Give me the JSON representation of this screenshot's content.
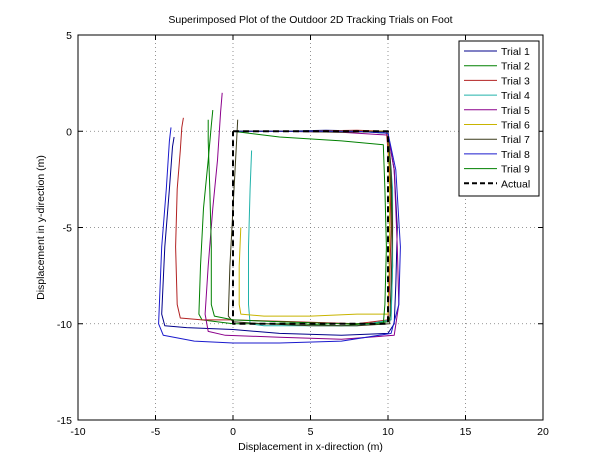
{
  "chart_data": {
    "type": "line",
    "title": "Superimposed Plot of the Outdoor 2D Tracking Trials on Foot",
    "xlabel": "Displacement in x-direction (m)",
    "ylabel": "Displacement in y-direction (m)",
    "xlim": [
      -10,
      20
    ],
    "ylim": [
      -15,
      5
    ],
    "xticks": [
      -10,
      -5,
      0,
      5,
      10,
      15,
      20
    ],
    "yticks": [
      -15,
      -10,
      -5,
      0,
      5
    ],
    "grid": true,
    "legend_position": "top-right",
    "series": [
      {
        "name": "Trial 1",
        "color": "#00008b",
        "dash": "solid",
        "points": [
          [
            0,
            0
          ],
          [
            3,
            0
          ],
          [
            6,
            0.05
          ],
          [
            9,
            0
          ],
          [
            10,
            -0.1
          ],
          [
            10.4,
            -2
          ],
          [
            10.6,
            -5
          ],
          [
            10.5,
            -8
          ],
          [
            10.4,
            -10
          ],
          [
            10,
            -10.5
          ],
          [
            7,
            -10.6
          ],
          [
            3,
            -10.5
          ],
          [
            0,
            -10.3
          ],
          [
            -3,
            -10.2
          ],
          [
            -4.4,
            -10.1
          ],
          [
            -4.6,
            -9.5
          ],
          [
            -4.4,
            -6
          ],
          [
            -4.1,
            -3
          ],
          [
            -3.9,
            -0.8
          ],
          [
            -3.8,
            -0.3
          ]
        ]
      },
      {
        "name": "Trial 2",
        "color": "#008000",
        "dash": "solid",
        "points": [
          [
            0,
            0
          ],
          [
            4,
            0
          ],
          [
            8,
            0
          ],
          [
            10,
            -0.1
          ],
          [
            10.2,
            -3
          ],
          [
            10.3,
            -7
          ],
          [
            10.2,
            -9.5
          ],
          [
            10,
            -9.9
          ],
          [
            7,
            -10.1
          ],
          [
            4,
            -10
          ],
          [
            0,
            -10
          ],
          [
            -2,
            -9.8
          ],
          [
            -2.2,
            -9.5
          ],
          [
            -2.1,
            -7
          ],
          [
            -1.9,
            -4
          ],
          [
            -1.6,
            -1.5
          ],
          [
            -1.4,
            0.3
          ],
          [
            -1.3,
            1.1
          ]
        ]
      },
      {
        "name": "Trial 3",
        "color": "#b22222",
        "dash": "solid",
        "points": [
          [
            0,
            0
          ],
          [
            4,
            0
          ],
          [
            8,
            0.05
          ],
          [
            9.9,
            0
          ],
          [
            10.1,
            -2
          ],
          [
            10.2,
            -5
          ],
          [
            10.1,
            -8
          ],
          [
            10,
            -9.8
          ],
          [
            8,
            -10
          ],
          [
            4,
            -9.9
          ],
          [
            0,
            -9.8
          ],
          [
            -2,
            -9.8
          ],
          [
            -3.4,
            -9.7
          ],
          [
            -3.6,
            -9
          ],
          [
            -3.7,
            -6
          ],
          [
            -3.6,
            -3
          ],
          [
            -3.4,
            -1
          ],
          [
            -3.3,
            0.2
          ],
          [
            -3.2,
            0.7
          ]
        ]
      },
      {
        "name": "Trial 4",
        "color": "#20b2aa",
        "dash": "solid",
        "points": [
          [
            0,
            0
          ],
          [
            4,
            0
          ],
          [
            8,
            0
          ],
          [
            10,
            -0.1
          ],
          [
            10.3,
            -3
          ],
          [
            10.3,
            -7
          ],
          [
            10.2,
            -9.8
          ],
          [
            8,
            -10.1
          ],
          [
            5,
            -10.1
          ],
          [
            2,
            -10.1
          ],
          [
            1.1,
            -10
          ],
          [
            1.0,
            -9
          ],
          [
            1.0,
            -6
          ],
          [
            1.1,
            -3
          ],
          [
            1.2,
            -1
          ]
        ]
      },
      {
        "name": "Trial 5",
        "color": "#8b008b",
        "dash": "solid",
        "points": [
          [
            0,
            0
          ],
          [
            3,
            0
          ],
          [
            7,
            -0.05
          ],
          [
            10,
            -0.2
          ],
          [
            10.4,
            -2
          ],
          [
            10.6,
            -6
          ],
          [
            10.7,
            -9
          ],
          [
            10.4,
            -10.6
          ],
          [
            7,
            -10.8
          ],
          [
            3,
            -10.7
          ],
          [
            -0.5,
            -10.6
          ],
          [
            -1.6,
            -10.4
          ],
          [
            -1.8,
            -9.5
          ],
          [
            -1.6,
            -7
          ],
          [
            -1.3,
            -4
          ],
          [
            -1.0,
            -1.5
          ],
          [
            -0.8,
            1
          ],
          [
            -0.7,
            2
          ]
        ]
      },
      {
        "name": "Trial 6",
        "color": "#c8b400",
        "dash": "solid",
        "points": [
          [
            0,
            0
          ],
          [
            4,
            0
          ],
          [
            8,
            0
          ],
          [
            10,
            0
          ],
          [
            10.1,
            -3
          ],
          [
            10.1,
            -6
          ],
          [
            10,
            -9.5
          ],
          [
            8,
            -9.5
          ],
          [
            5,
            -9.6
          ],
          [
            2,
            -9.6
          ],
          [
            0.5,
            -9.5
          ],
          [
            0.4,
            -9
          ],
          [
            0.4,
            -7
          ],
          [
            0.5,
            -5
          ]
        ]
      },
      {
        "name": "Trial 7",
        "color": "#3a3a1a",
        "dash": "solid",
        "points": [
          [
            0,
            0
          ],
          [
            3,
            0
          ],
          [
            7,
            -0.05
          ],
          [
            10,
            0
          ],
          [
            10.2,
            -2
          ],
          [
            10.3,
            -5
          ],
          [
            10.2,
            -8
          ],
          [
            10.1,
            -10
          ],
          [
            8,
            -10.1
          ],
          [
            5,
            -10.1
          ],
          [
            2,
            -10
          ],
          [
            0,
            -9.9
          ],
          [
            -0.3,
            -9.6
          ],
          [
            -0.2,
            -7
          ],
          [
            0,
            -4
          ],
          [
            0.2,
            -1
          ],
          [
            0.3,
            0.6
          ]
        ]
      },
      {
        "name": "Trial 8",
        "color": "#1a1acd",
        "dash": "solid",
        "points": [
          [
            0,
            0
          ],
          [
            4,
            0
          ],
          [
            8,
            0
          ],
          [
            10,
            -0.1
          ],
          [
            10.5,
            -2
          ],
          [
            10.8,
            -6
          ],
          [
            10.7,
            -9
          ],
          [
            10.2,
            -10.5
          ],
          [
            7,
            -10.9
          ],
          [
            3,
            -11
          ],
          [
            0,
            -11
          ],
          [
            -2.5,
            -10.9
          ],
          [
            -4.5,
            -10.6
          ],
          [
            -4.8,
            -10
          ],
          [
            -4.6,
            -6
          ],
          [
            -4.3,
            -3
          ],
          [
            -4.1,
            -0.5
          ],
          [
            -4.0,
            0.2
          ]
        ]
      },
      {
        "name": "Trial 9",
        "color": "#008000",
        "dash": "solid",
        "points": [
          [
            0,
            0
          ],
          [
            3,
            -0.3
          ],
          [
            7,
            -0.5
          ],
          [
            9.7,
            -0.7
          ],
          [
            9.8,
            -3
          ],
          [
            9.9,
            -6
          ],
          [
            9.8,
            -9
          ],
          [
            9.7,
            -10
          ],
          [
            7,
            -10
          ],
          [
            3,
            -9.9
          ],
          [
            0,
            -9.8
          ],
          [
            -1.2,
            -9.6
          ],
          [
            -1.4,
            -9
          ],
          [
            -1.4,
            -6
          ],
          [
            -1.5,
            -3
          ],
          [
            -1.6,
            -0.5
          ],
          [
            -1.6,
            0.6
          ]
        ]
      },
      {
        "name": "Actual",
        "color": "#000000",
        "dash": "dashed",
        "points": [
          [
            0,
            0
          ],
          [
            10,
            0
          ],
          [
            10,
            -10
          ],
          [
            0,
            -10
          ],
          [
            0,
            0
          ]
        ]
      }
    ]
  }
}
